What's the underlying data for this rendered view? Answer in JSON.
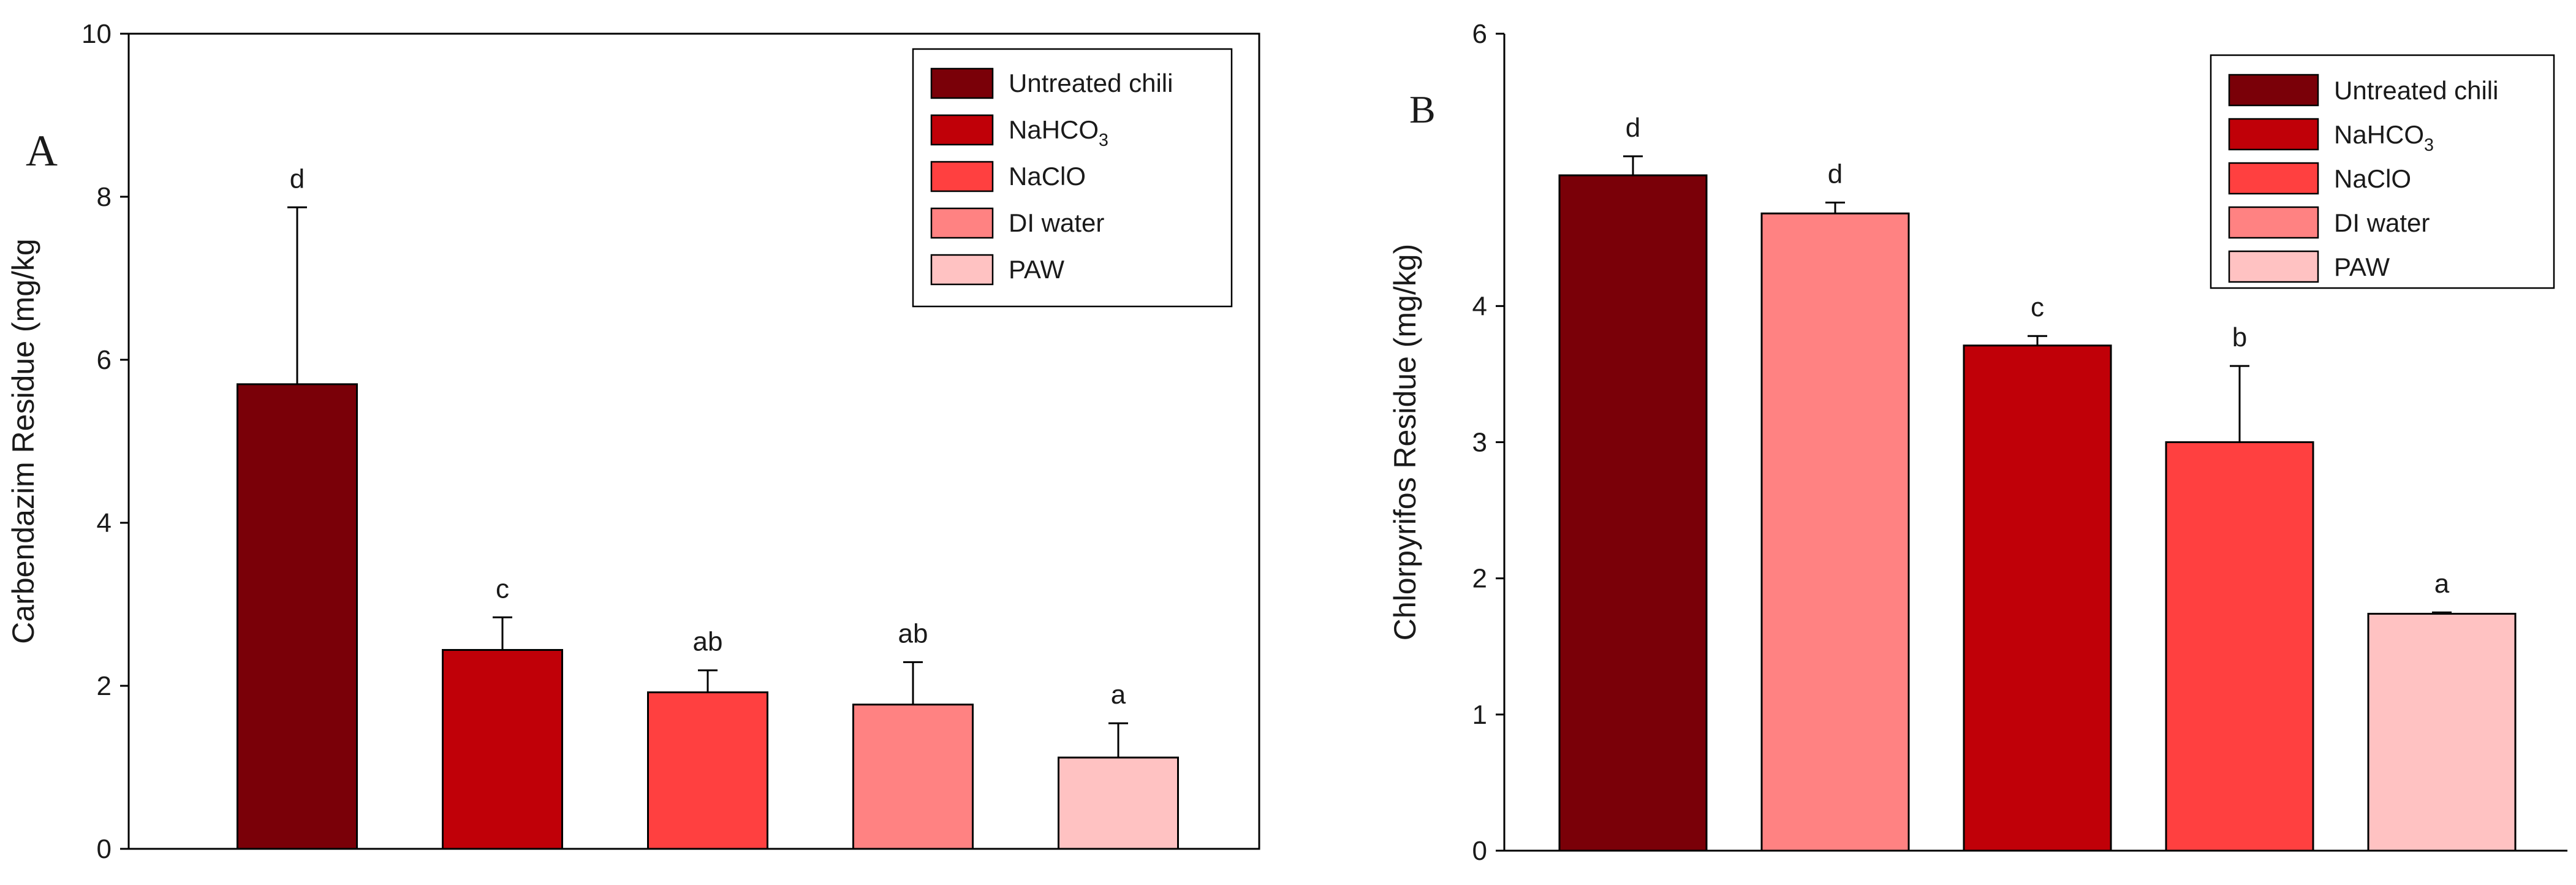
{
  "colors": {
    "untreated": "#7a0008",
    "nahco3": "#c00008",
    "naclo": "#ff4040",
    "di_water": "#ff8282",
    "paw": "#ffc2c2"
  },
  "legend": [
    {
      "key": "untreated",
      "base": "Untreated chili",
      "sub": ""
    },
    {
      "key": "nahco3",
      "base": "NaHCO",
      "sub": "3"
    },
    {
      "key": "naclo",
      "base": "NaClO",
      "sub": ""
    },
    {
      "key": "di_water",
      "base": "DI water",
      "sub": ""
    },
    {
      "key": "paw",
      "base": "PAW",
      "sub": ""
    }
  ],
  "chart_data": [
    {
      "type": "bar",
      "panel_label": "A",
      "title": "",
      "xlabel": "",
      "ylabel": "Carbendazim Residue (mg/kg",
      "ylim": [
        0,
        10
      ],
      "yticks": [
        0,
        2,
        4,
        6,
        8,
        10
      ],
      "legend_position": "top-right",
      "bars": [
        {
          "key": "untreated",
          "value": 5.7,
          "error": 2.17,
          "letter": "d"
        },
        {
          "key": "nahco3",
          "value": 2.44,
          "error": 0.4,
          "letter": "c"
        },
        {
          "key": "naclo",
          "value": 1.92,
          "error": 0.27,
          "letter": "ab"
        },
        {
          "key": "di_water",
          "value": 1.77,
          "error": 0.52,
          "letter": "ab"
        },
        {
          "key": "paw",
          "value": 1.12,
          "error": 0.42,
          "letter": "a"
        }
      ]
    },
    {
      "type": "bar",
      "panel_label": "B",
      "title": "",
      "xlabel": "",
      "ylabel": "Chlorpyrifos Residue (mg/kg)",
      "ylim": [
        0,
        6
      ],
      "yticks": [
        0,
        1,
        2,
        3,
        4,
        6
      ],
      "legend_position": "top-right",
      "bars": [
        {
          "key": "untreated",
          "value": 4.96,
          "error": 0.14,
          "letter": "d"
        },
        {
          "key": "di_water",
          "value": 4.68,
          "error": 0.08,
          "letter": "d"
        },
        {
          "key": "nahco3",
          "value": 3.71,
          "error": 0.07,
          "letter": "c"
        },
        {
          "key": "naclo",
          "value": 3.0,
          "error": 0.56,
          "letter": "b"
        },
        {
          "key": "paw",
          "value": 1.74,
          "error": 0.01,
          "letter": "a"
        }
      ]
    }
  ]
}
